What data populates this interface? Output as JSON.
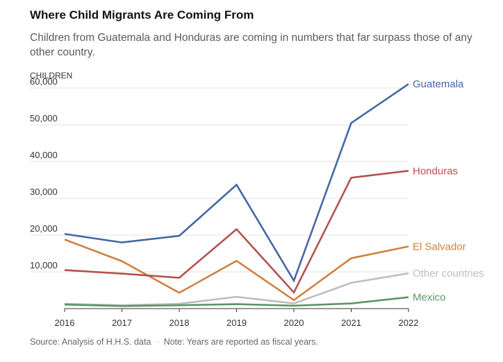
{
  "header": {
    "title": "Where Child Migrants Are Coming From",
    "subtitle": "Children from Guatemala and Honduras are coming in numbers that far surpass those of any other country."
  },
  "footer": {
    "source": "Source: Analysis of H.H.S. data",
    "separator": "·",
    "note": "Note: Years are reported as fiscal years."
  },
  "chart_data": {
    "type": "line",
    "x": [
      "2016",
      "2017",
      "2018",
      "2019",
      "2020",
      "2021",
      "2022"
    ],
    "ylabel": "CHILDREN",
    "ylim": [
      0,
      60000
    ],
    "yticks": [
      10000,
      20000,
      30000,
      40000,
      50000,
      60000
    ],
    "ytick_labels": [
      "10,000",
      "20,000",
      "30,000",
      "40,000",
      "50,000",
      "60,000"
    ],
    "grid": "horizontal",
    "legend": "end-of-line labels",
    "series": [
      {
        "name": "Other countries",
        "color": "#bdbdbd",
        "values": [
          1300,
          900,
          1300,
          3200,
          1400,
          7000,
          9600
        ]
      },
      {
        "name": "El Salvador",
        "color": "#cf803f",
        "values": [
          18800,
          12900,
          4300,
          13000,
          2300,
          13700,
          16900
        ]
      },
      {
        "name": "Honduras",
        "color": "#b5504f",
        "values": [
          10500,
          9500,
          8400,
          21600,
          4400,
          35600,
          37500
        ]
      },
      {
        "name": "Guatemala",
        "color": "#4467a6",
        "values": [
          20300,
          18000,
          19800,
          33700,
          7600,
          50500,
          61100
        ]
      },
      {
        "name": "Mexico",
        "color": "#5c9565",
        "values": [
          1100,
          700,
          900,
          1200,
          800,
          1400,
          3100
        ]
      }
    ]
  }
}
